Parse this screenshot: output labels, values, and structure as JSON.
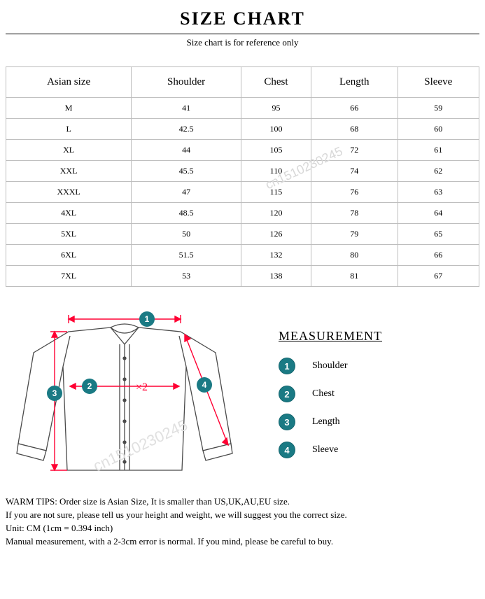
{
  "header": {
    "title": "SIZE CHART",
    "subtitle": "Size chart is for reference only"
  },
  "table": {
    "columns": [
      "Asian size",
      "Shoulder",
      "Chest",
      "Length",
      "Sleeve"
    ],
    "rows": [
      [
        "M",
        "41",
        "95",
        "66",
        "59"
      ],
      [
        "L",
        "42.5",
        "100",
        "68",
        "60"
      ],
      [
        "XL",
        "44",
        "105",
        "72",
        "61"
      ],
      [
        "XXL",
        "45.5",
        "110",
        "74",
        "62"
      ],
      [
        "XXXL",
        "47",
        "115",
        "76",
        "63"
      ],
      [
        "4XL",
        "48.5",
        "120",
        "78",
        "64"
      ],
      [
        "5XL",
        "50",
        "126",
        "79",
        "65"
      ],
      [
        "6XL",
        "51.5",
        "132",
        "80",
        "66"
      ],
      [
        "7XL",
        "53",
        "138",
        "81",
        "67"
      ]
    ],
    "border_color": "#bdbdbd",
    "header_fontsize": 15,
    "cell_fontsize": 12
  },
  "watermark": "cn1510230245",
  "diagram": {
    "arrow_color": "#ff0033",
    "shirt_stroke": "#4a4a4a",
    "shirt_fill": "#ffffff",
    "multiplier_label": "×2",
    "badge_colors": {
      "1": "#1a7a84",
      "2": "#1a7a84",
      "3": "#1a7a84",
      "4": "#1a7a84"
    }
  },
  "measurement": {
    "heading": "MEASUREMENT",
    "items": [
      {
        "num": "1",
        "label": "Shoulder",
        "color": "#1a7a84"
      },
      {
        "num": "2",
        "label": "Chest",
        "color": "#1a7a84"
      },
      {
        "num": "3",
        "label": "Length",
        "color": "#1a7a84"
      },
      {
        "num": "4",
        "label": "Sleeve",
        "color": "#1a7a84"
      }
    ]
  },
  "tips": {
    "line1": "WARM TIPS: Order size is Asian Size, It is smaller than US,UK,AU,EU size.",
    "line2": "If you are not sure, please tell us your height and weight, we will suggest you the correct size.",
    "line3": "Unit: CM (1cm = 0.394 inch)",
    "line4": "Manual measurement, with a 2-3cm error is normal. If you mind, please be careful to buy."
  },
  "colors": {
    "text": "#000000",
    "background": "#ffffff",
    "rule": "#000000"
  }
}
